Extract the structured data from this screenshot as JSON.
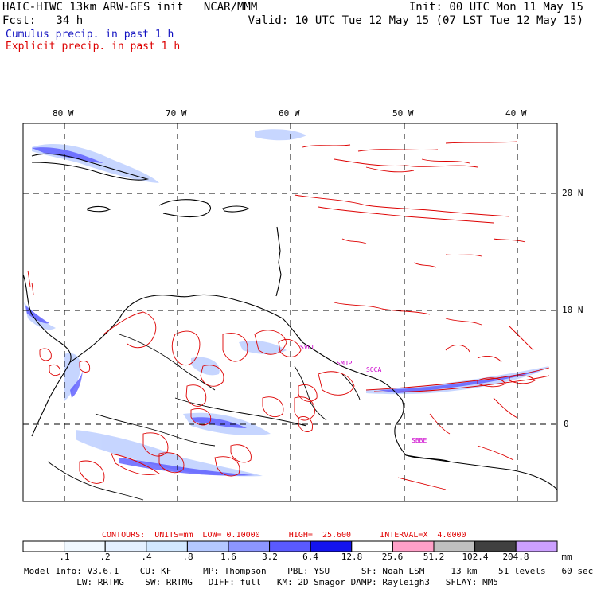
{
  "header": {
    "model_line": "HAIC-HIWC 13km ARW-GFS init   NCAR/MMM",
    "init": "Init: 00 UTC Mon 11 May 15",
    "fcst": "Fcst:   34 h",
    "valid": "Valid: 10 UTC Tue 12 May 15 (07 LST Tue 12 May 15)",
    "cumulus_legend": "Cumulus precip. in past 1 h",
    "explicit_legend": "Explicit precip. in past 1 h"
  },
  "colors": {
    "cumulus": "#1010c0",
    "explicit": "#dd0000",
    "label": "#cc00cc"
  },
  "axes": {
    "top_labels": [
      "80 W",
      "70 W",
      "60 W",
      "50 W",
      "40 W"
    ],
    "right_labels": [
      "20 N",
      "10 N",
      "0"
    ]
  },
  "place_labels": [
    "SVCL",
    "SMJP",
    "SOCA",
    "SBBE"
  ],
  "contour_info": {
    "text": "CONTOURS:  UNITS=mm  LOW= 0.10000      HIGH=  25.600      INTERVAL=X  4.0000"
  },
  "colorbar": {
    "labels": [
      ".1",
      ".2",
      ".4",
      ".8",
      "1.6",
      "3.2",
      "6.4",
      "12.8",
      "25.6",
      "51.2",
      "102.4",
      "204.8"
    ],
    "unit": "mm",
    "colors": [
      "#ffffff",
      "#f0f8ff",
      "#e4f0ff",
      "#d2e8ff",
      "#b4c8ff",
      "#8c96ff",
      "#5a5aff",
      "#1414ee",
      "#ffffff",
      "#ffa0c8",
      "#c0c0c0",
      "#404040",
      "#cca0ff"
    ]
  },
  "model_info": {
    "line1": "Model Info: V3.6.1    CU: KF      MP: Thompson    PBL: YSU      SF: Noah LSM     13 km    51 levels   60 sec",
    "line2": "          LW: RRTMG    SW: RRTMG   DIFF: full   KM: 2D Smagor DAMP: Rayleigh3   SFLAY: MM5"
  }
}
